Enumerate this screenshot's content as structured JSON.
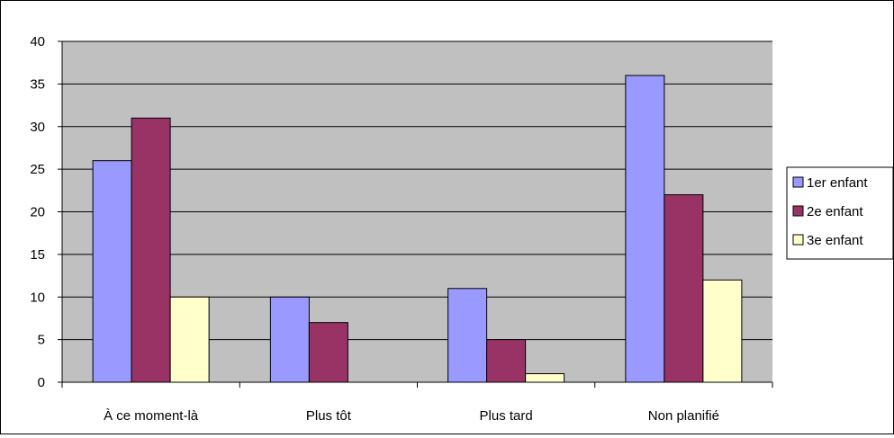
{
  "chart_data": {
    "type": "bar",
    "categories": [
      "À ce moment-là",
      "Plus tôt",
      "Plus tard",
      "Non planifié"
    ],
    "series": [
      {
        "name": "1er enfant",
        "values": [
          26,
          10,
          11,
          36
        ],
        "color": "#9999ff"
      },
      {
        "name": "2e enfant",
        "values": [
          31,
          7,
          5,
          22
        ],
        "color": "#993366"
      },
      {
        "name": "3e enfant",
        "values": [
          10,
          0,
          1,
          12
        ],
        "color": "#ffffcc"
      }
    ],
    "ylim": [
      0,
      40
    ],
    "yticks": [
      0,
      5,
      10,
      15,
      20,
      25,
      30,
      35,
      40
    ],
    "grid": true,
    "plot_background": "#c0c0c0",
    "legend_position": "right",
    "title": "",
    "xlabel": "",
    "ylabel": ""
  }
}
